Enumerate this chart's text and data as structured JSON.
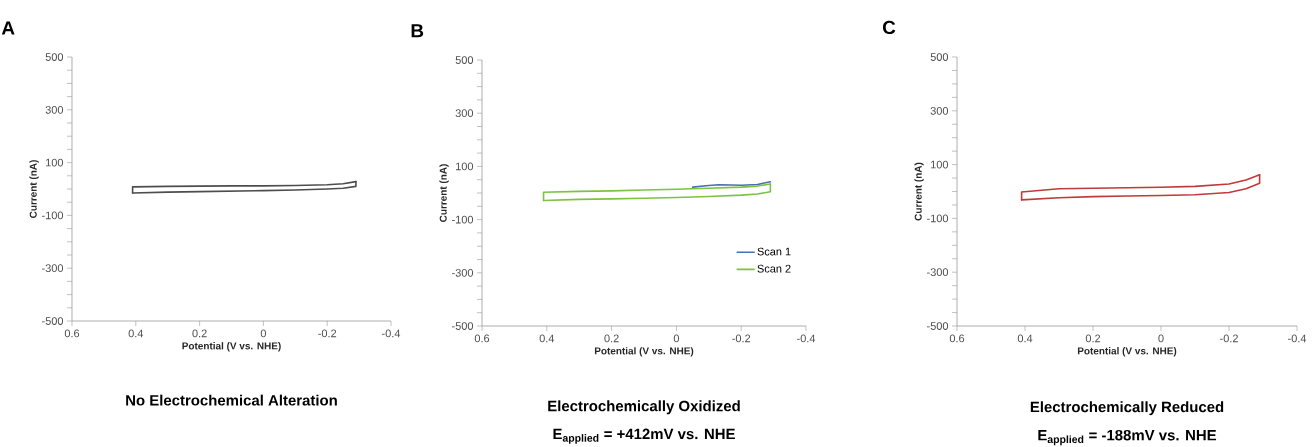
{
  "chart_data": [
    {
      "type": "line",
      "title": "No Electrochemical Alteration",
      "annotations": [
        "A"
      ],
      "xlabel": "Potential (V vs. NHE)",
      "ylabel": "Current (nA)",
      "xlim": [
        0.6,
        -0.4
      ],
      "ylim": [
        -500,
        500
      ],
      "xticks": [
        0.6,
        0.4,
        0.2,
        0,
        -0.2,
        -0.4
      ],
      "yticks": [
        -500,
        {
          "value": -450,
          "label": null
        },
        {
          "value": -400,
          "label": null
        },
        {
          "value": -350,
          "label": null
        },
        -300,
        {
          "value": -250,
          "label": null
        },
        {
          "value": -200,
          "label": null
        },
        {
          "value": -150,
          "label": null
        },
        -100,
        {
          "value": -50,
          "label": null
        },
        {
          "value": 0,
          "label": null
        },
        {
          "value": 50,
          "label": null
        },
        100,
        {
          "value": 150,
          "label": null
        },
        {
          "value": 200,
          "label": null
        },
        {
          "value": 250,
          "label": null
        },
        300,
        {
          "value": 350,
          "label": null
        },
        {
          "value": 400,
          "label": null
        },
        {
          "value": 450,
          "label": null
        },
        500
      ],
      "series": [
        {
          "color": "#4d4d4d",
          "x": [
            0.41,
            0.41,
            0.3,
            0.2,
            0.1,
            0,
            -0.1,
            -0.2,
            -0.25,
            -0.29
          ],
          "values": [
            -15,
            8,
            10,
            11,
            12,
            12,
            13,
            16,
            20,
            28
          ]
        },
        {
          "color": "#4d4d4d",
          "x": [
            -0.29,
            -0.29,
            -0.25,
            -0.2,
            -0.1,
            0,
            0.1,
            0.2,
            0.3,
            0.41
          ],
          "values": [
            28,
            10,
            3,
            0,
            -4,
            -6,
            -8,
            -10,
            -12,
            -15
          ]
        }
      ]
    },
    {
      "type": "line",
      "title": "Electrochemically Oxidized",
      "subtitle": "E$_{applied}$ = +412mV vs. NHE",
      "annotations": [
        "B"
      ],
      "xlabel": "Potential (V vs. NHE)",
      "ylabel": "Current (nA)",
      "xlim": [
        0.6,
        -0.4
      ],
      "ylim": [
        -500,
        500
      ],
      "legend": "bottom right",
      "xticks": [
        0.6,
        0.4,
        0.2,
        0,
        -0.2,
        -0.4
      ],
      "yticks": [
        -500,
        {
          "value": -450,
          "label": null
        },
        {
          "value": -400,
          "label": null
        },
        {
          "value": -350,
          "label": null
        },
        -300,
        {
          "value": -250,
          "label": null
        },
        {
          "value": -200,
          "label": null
        },
        {
          "value": -150,
          "label": null
        },
        -100,
        {
          "value": -50,
          "label": null
        },
        {
          "value": 0,
          "label": null
        },
        {
          "value": 50,
          "label": null
        },
        100,
        {
          "value": 150,
          "label": null
        },
        {
          "value": 200,
          "label": null
        },
        {
          "value": 250,
          "label": null
        },
        300,
        {
          "value": 350,
          "label": null
        },
        {
          "value": 400,
          "label": null
        },
        {
          "value": 450,
          "label": null
        },
        500
      ],
      "series": [
        {
          "name": "Scan 1",
          "color": "#4a6fb5",
          "x": [
            -0.05,
            -0.1,
            -0.13,
            -0.17,
            -0.2,
            -0.25,
            -0.29
          ],
          "values": [
            22,
            28,
            31,
            30,
            29,
            32,
            42
          ]
        },
        {
          "name": "Scan 2",
          "color": "#7dc242",
          "x": [
            0.41,
            0.41,
            0.3,
            0.2,
            0.1,
            0,
            -0.1,
            -0.2,
            -0.25,
            -0.29
          ],
          "values": [
            -28,
            3,
            6,
            8,
            11,
            14,
            18,
            22,
            26,
            34
          ]
        },
        {
          "color": "#7dc242",
          "x": [
            -0.29,
            -0.29,
            -0.25,
            -0.2,
            -0.1,
            0,
            0.1,
            0.2,
            0.3,
            0.41
          ],
          "values": [
            34,
            5,
            -4,
            -8,
            -13,
            -17,
            -20,
            -22,
            -24,
            -28
          ]
        }
      ]
    },
    {
      "type": "line",
      "title": "Electrochemically Reduced",
      "subtitle": "E$_{applied}$ = -188mV vs. NHE",
      "annotations": [
        "C"
      ],
      "xlabel": "Potential (V vs. NHE)",
      "ylabel": "Current (nA)",
      "xlim": [
        0.6,
        -0.4
      ],
      "ylim": [
        -500,
        500
      ],
      "xticks": [
        0.6,
        0.4,
        0.2,
        0,
        -0.2,
        -0.4
      ],
      "yticks": [
        -500,
        {
          "value": -450,
          "label": null
        },
        {
          "value": -400,
          "label": null
        },
        {
          "value": -350,
          "label": null
        },
        -300,
        {
          "value": -250,
          "label": null
        },
        {
          "value": -200,
          "label": null
        },
        {
          "value": -150,
          "label": null
        },
        -100,
        {
          "value": -50,
          "label": null
        },
        {
          "value": 0,
          "label": null
        },
        {
          "value": 50,
          "label": null
        },
        100,
        {
          "value": 150,
          "label": null
        },
        {
          "value": 200,
          "label": null
        },
        {
          "value": 250,
          "label": null
        },
        300,
        {
          "value": 350,
          "label": null
        },
        {
          "value": 400,
          "label": null
        },
        {
          "value": 450,
          "label": null
        },
        500
      ],
      "series": [
        {
          "color": "#c0393b",
          "x": [
            0.41,
            0.41,
            0.3,
            0.2,
            0.1,
            0,
            -0.1,
            -0.2,
            -0.25,
            -0.29
          ],
          "values": [
            -31,
            -2,
            10,
            12,
            14,
            16,
            19,
            28,
            43,
            62
          ]
        },
        {
          "color": "#c0393b",
          "x": [
            -0.29,
            -0.29,
            -0.25,
            -0.2,
            -0.1,
            0,
            0.1,
            0.2,
            0.3,
            0.41
          ],
          "values": [
            62,
            31,
            10,
            -4,
            -12,
            -15,
            -17,
            -19,
            -23,
            -31
          ]
        }
      ]
    }
  ]
}
